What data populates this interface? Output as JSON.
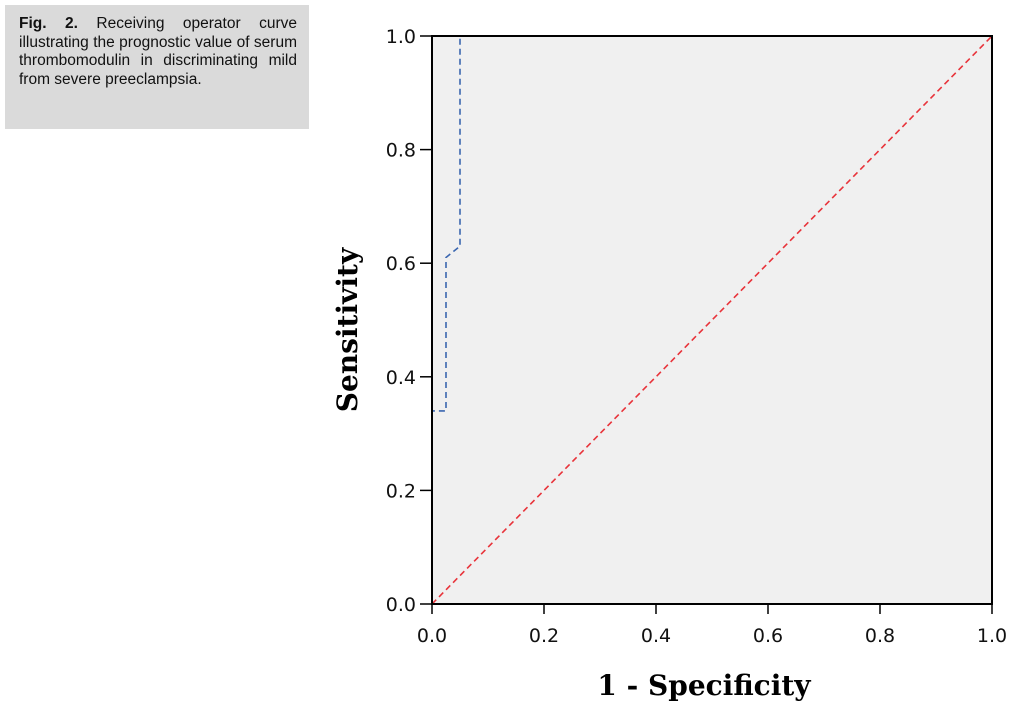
{
  "caption": {
    "label": "Fig. 2.",
    "text": "Receiving operator curve illustrating the prognostic value of serum thrombomodulin in discriminating mild from severe preeclampsia."
  },
  "chart_data": {
    "type": "line",
    "xlabel": "1 - Specificity",
    "ylabel": "Sensitivity",
    "xlim": [
      0.0,
      1.0
    ],
    "ylim": [
      0.0,
      1.0
    ],
    "x_ticks": [
      "0.0",
      "0.2",
      "0.4",
      "0.6",
      "0.8",
      "1.0"
    ],
    "y_ticks": [
      "0.0",
      "0.2",
      "0.4",
      "0.6",
      "0.8",
      "1.0"
    ],
    "grid": false,
    "plot_background": "#f0f0f0",
    "series": [
      {
        "color": "#3a66b0",
        "style": "dashed",
        "x": [
          0.0,
          0.0,
          0.025,
          0.025,
          0.025,
          0.05,
          0.05,
          0.05,
          1.0
        ],
        "y": [
          0.0,
          0.34,
          0.34,
          0.52,
          0.61,
          0.63,
          0.75,
          1.0,
          1.0
        ]
      },
      {
        "color": "#e8333a",
        "style": "dashed",
        "x": [
          0.0,
          1.0
        ],
        "y": [
          0.0,
          1.0
        ]
      }
    ]
  }
}
